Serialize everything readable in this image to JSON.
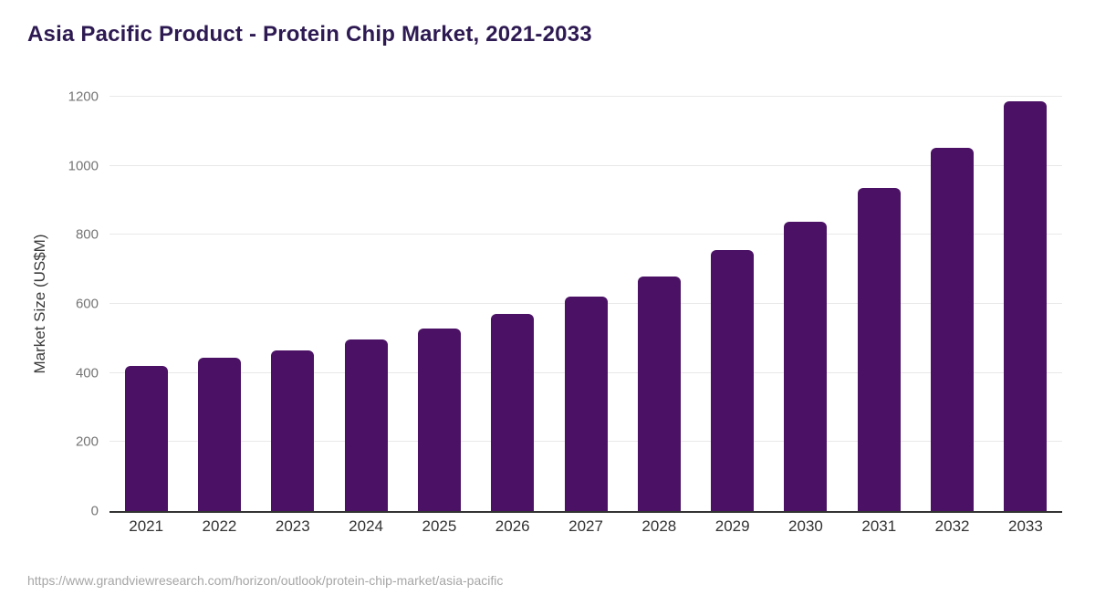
{
  "page": {
    "title": "Asia Pacific Product - Protein Chip Market, 2021-2033",
    "source_url": "https://www.grandviewresearch.com/horizon/outlook/protein-chip-market/asia-pacific"
  },
  "colors": {
    "bar": "#4a1164",
    "title": "#2e1a52",
    "axis_line": "#333333",
    "gridline": "#e8e8e8",
    "tick_label": "#757575",
    "category_label": "#333333",
    "source_text": "#a6a6a6"
  },
  "chart_data": {
    "type": "bar",
    "title": "Asia Pacific Product - Protein Chip Market, 2021-2033",
    "categories": [
      "2021",
      "2022",
      "2023",
      "2024",
      "2025",
      "2026",
      "2027",
      "2028",
      "2029",
      "2030",
      "2031",
      "2032",
      "2033"
    ],
    "values": [
      420,
      443,
      465,
      496,
      529,
      571,
      621,
      680,
      755,
      838,
      935,
      1051,
      1186
    ],
    "xlabel": "",
    "ylabel": "Market Size (US$M)",
    "ylim": [
      0,
      1200
    ],
    "yticks": [
      0,
      200,
      400,
      600,
      800,
      1000,
      1200
    ],
    "grid": true,
    "legend": false,
    "bar_color": "#4a1164"
  }
}
